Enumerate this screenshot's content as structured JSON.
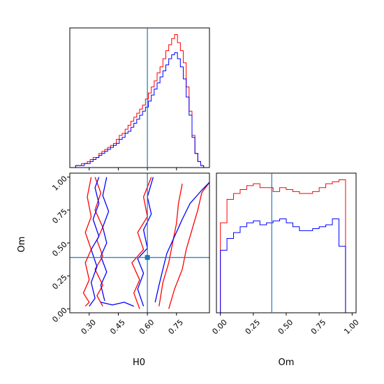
{
  "chart_data": {
    "type": "corner",
    "parameters": [
      "H0",
      "Om"
    ],
    "truth": {
      "H0": 0.6,
      "Om": 0.39
    },
    "series": [
      {
        "color": "#ff0000"
      },
      {
        "color": "#0000ff"
      }
    ],
    "truth_color": "#1f77b4",
    "panels": [
      {
        "id": "hist-H0",
        "type": "histogram",
        "xlim": [
          0.2,
          0.92
        ],
        "x_ticks": [
          0.3,
          0.45,
          0.6,
          0.75
        ],
        "bin_edges": [
          0.2,
          0.215,
          0.23,
          0.245,
          0.26,
          0.275,
          0.29,
          0.305,
          0.32,
          0.335,
          0.35,
          0.365,
          0.38,
          0.395,
          0.41,
          0.425,
          0.44,
          0.455,
          0.47,
          0.485,
          0.5,
          0.515,
          0.53,
          0.545,
          0.56,
          0.575,
          0.59,
          0.605,
          0.62,
          0.635,
          0.65,
          0.665,
          0.68,
          0.695,
          0.71,
          0.725,
          0.74,
          0.755,
          0.77,
          0.785,
          0.8,
          0.815,
          0.83,
          0.845,
          0.86,
          0.875,
          0.89,
          0.905,
          0.92
        ],
        "counts": [
          [
            0,
            0,
            1,
            1,
            2,
            2,
            3,
            4,
            5,
            5,
            7,
            8,
            9,
            10,
            11,
            12,
            14,
            16,
            17,
            19,
            21,
            23,
            25,
            27,
            29,
            31,
            34,
            37,
            40,
            43,
            47,
            50,
            54,
            58,
            61,
            64,
            66,
            62,
            58,
            52,
            40,
            28,
            16,
            7,
            3,
            1,
            0,
            0
          ],
          [
            0,
            0,
            1,
            1,
            1,
            2,
            2,
            3,
            4,
            5,
            6,
            7,
            8,
            9,
            10,
            11,
            12,
            14,
            15,
            17,
            18,
            20,
            22,
            24,
            26,
            28,
            30,
            33,
            36,
            39,
            42,
            45,
            48,
            51,
            54,
            56,
            57,
            54,
            50,
            44,
            35,
            26,
            15,
            7,
            3,
            1,
            0,
            0
          ]
        ]
      },
      {
        "id": "hist-Om",
        "type": "histogram",
        "xlim": [
          -0.03,
          1.03
        ],
        "x_ticks": [
          0.0,
          0.25,
          0.5,
          0.75,
          1.0
        ],
        "bin_edges": [
          -0.03,
          0.0,
          0.05,
          0.1,
          0.15,
          0.2,
          0.25,
          0.3,
          0.35,
          0.4,
          0.45,
          0.5,
          0.55,
          0.6,
          0.65,
          0.7,
          0.75,
          0.8,
          0.85,
          0.9,
          0.95,
          1.0
        ],
        "counts": [
          [
            0,
            46,
            58,
            61,
            63,
            65,
            66,
            64,
            64,
            62,
            64,
            63,
            62,
            61,
            61,
            62,
            64,
            66,
            67,
            68,
            0
          ],
          [
            0,
            32,
            38,
            41,
            44,
            46,
            47,
            45,
            46,
            47,
            48,
            46,
            44,
            42,
            42,
            43,
            44,
            45,
            48,
            34,
            0
          ]
        ]
      },
      {
        "id": "contour-H0-Om",
        "type": "contour",
        "xlim": [
          0.2,
          0.92
        ],
        "ylim": [
          -0.03,
          1.03
        ],
        "x_ticks": [
          0.3,
          0.45,
          0.6,
          0.75
        ],
        "y_ticks": [
          0.0,
          0.25,
          0.5,
          0.75,
          1.0
        ],
        "contours": [
          {
            "series": 0,
            "points": [
              [
                0.28,
                0.02
              ],
              [
                0.3,
                0.05
              ],
              [
                0.27,
                0.12
              ],
              [
                0.3,
                0.22
              ],
              [
                0.28,
                0.35
              ],
              [
                0.31,
                0.45
              ],
              [
                0.28,
                0.58
              ],
              [
                0.31,
                0.7
              ],
              [
                0.29,
                0.85
              ],
              [
                0.31,
                1.0
              ]
            ]
          },
          {
            "series": 0,
            "points": [
              [
                0.37,
                0.02
              ],
              [
                0.34,
                0.1
              ],
              [
                0.37,
                0.18
              ],
              [
                0.33,
                0.3
              ],
              [
                0.37,
                0.4
              ],
              [
                0.34,
                0.52
              ],
              [
                0.37,
                0.62
              ],
              [
                0.33,
                0.75
              ],
              [
                0.36,
                0.88
              ],
              [
                0.33,
                1.0
              ]
            ]
          },
          {
            "series": 0,
            "points": [
              [
                0.56,
                0.0
              ],
              [
                0.53,
                0.12
              ],
              [
                0.56,
                0.22
              ],
              [
                0.52,
                0.35
              ],
              [
                0.58,
                0.45
              ],
              [
                0.55,
                0.58
              ],
              [
                0.6,
                0.7
              ],
              [
                0.58,
                0.85
              ],
              [
                0.62,
                1.0
              ]
            ]
          },
          {
            "series": 0,
            "points": [
              [
                0.71,
                0.0
              ],
              [
                0.74,
                0.15
              ],
              [
                0.78,
                0.3
              ],
              [
                0.8,
                0.45
              ],
              [
                0.83,
                0.6
              ],
              [
                0.86,
                0.75
              ],
              [
                0.88,
                0.88
              ],
              [
                0.92,
                0.96
              ]
            ]
          },
          {
            "series": 0,
            "points": [
              [
                0.66,
                0.02
              ],
              [
                0.68,
                0.2
              ],
              [
                0.71,
                0.35
              ],
              [
                0.73,
                0.5
              ],
              [
                0.75,
                0.65
              ],
              [
                0.76,
                0.8
              ],
              [
                0.78,
                0.95
              ]
            ]
          },
          {
            "series": 1,
            "points": [
              [
                0.3,
                0.02
              ],
              [
                0.33,
                0.08
              ],
              [
                0.31,
                0.2
              ],
              [
                0.34,
                0.32
              ],
              [
                0.31,
                0.45
              ],
              [
                0.35,
                0.55
              ],
              [
                0.32,
                0.68
              ],
              [
                0.35,
                0.8
              ],
              [
                0.33,
                0.92
              ],
              [
                0.35,
                1.0
              ]
            ]
          },
          {
            "series": 1,
            "points": [
              [
                0.38,
                0.06
              ],
              [
                0.36,
                0.18
              ],
              [
                0.39,
                0.28
              ],
              [
                0.36,
                0.4
              ],
              [
                0.39,
                0.5
              ],
              [
                0.37,
                0.62
              ],
              [
                0.4,
                0.74
              ],
              [
                0.37,
                0.86
              ],
              [
                0.39,
                1.0
              ]
            ]
          },
          {
            "series": 1,
            "points": [
              [
                0.58,
                0.02
              ],
              [
                0.55,
                0.15
              ],
              [
                0.58,
                0.27
              ],
              [
                0.55,
                0.38
              ],
              [
                0.6,
                0.46
              ],
              [
                0.58,
                0.6
              ],
              [
                0.62,
                0.72
              ],
              [
                0.6,
                0.85
              ],
              [
                0.63,
                1.0
              ]
            ]
          },
          {
            "series": 1,
            "points": [
              [
                0.64,
                0.05
              ],
              [
                0.66,
                0.18
              ],
              [
                0.68,
                0.3
              ],
              [
                0.7,
                0.42
              ],
              [
                0.74,
                0.55
              ],
              [
                0.78,
                0.68
              ],
              [
                0.82,
                0.8
              ],
              [
                0.88,
                0.9
              ],
              [
                0.92,
                0.96
              ]
            ]
          },
          {
            "series": 1,
            "points": [
              [
                0.36,
                0.05
              ],
              [
                0.42,
                0.03
              ],
              [
                0.48,
                0.05
              ],
              [
                0.53,
                0.02
              ]
            ]
          }
        ]
      }
    ],
    "x_labels": [
      "H0",
      "Om"
    ],
    "y_labels": [
      "Om"
    ]
  }
}
